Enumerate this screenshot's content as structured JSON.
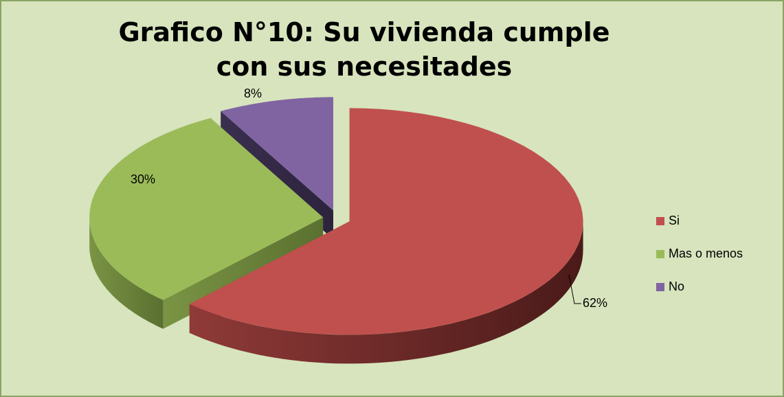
{
  "chart_data": {
    "type": "pie3d",
    "title": "Grafico N°10: Su vivienda cumple con sus necesitades",
    "categories": [
      "Si",
      "Mas o menos",
      "No"
    ],
    "values": [
      62,
      30,
      8
    ],
    "value_labels": [
      "62%",
      "30%",
      "8%"
    ],
    "colors": [
      "#c0504d",
      "#9bbb59",
      "#8064a2"
    ],
    "legend": "right"
  }
}
